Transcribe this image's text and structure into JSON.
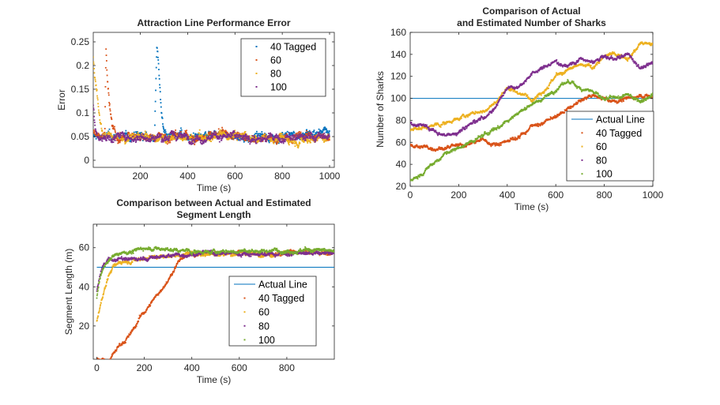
{
  "chart_data": [
    {
      "type": "scatter",
      "title": [
        "Attraction Line Performance Error"
      ],
      "xlabel": "Time (s)",
      "ylabel": "Error",
      "xlim": [
        1,
        1020
      ],
      "ylim": [
        -0.015,
        0.27
      ],
      "xticks": [
        200,
        400,
        600,
        800,
        1000
      ],
      "yticks": [
        0,
        0.05,
        0.1,
        0.15,
        0.2,
        0.25
      ],
      "grid": false,
      "legend_position": "top-right",
      "series": [
        {
          "name": "40 Tagged",
          "color": "#0072BD",
          "x": [
            1,
            200,
            260,
            270,
            275,
            280,
            285,
            290,
            300,
            400,
            600,
            800,
            1000
          ],
          "y": [
            0.05,
            0.05,
            0.05,
            0.25,
            0.22,
            0.17,
            0.13,
            0.09,
            0.06,
            0.05,
            0.05,
            0.05,
            0.06
          ]
        },
        {
          "name": "60",
          "color": "#D95319",
          "x": [
            1,
            30,
            50,
            55,
            60,
            70,
            80,
            100,
            200,
            400,
            600,
            800,
            1000
          ],
          "y": [
            0.06,
            0.05,
            0.06,
            0.23,
            0.18,
            0.12,
            0.08,
            0.05,
            0.05,
            0.05,
            0.05,
            0.05,
            0.05
          ]
        },
        {
          "name": "80",
          "color": "#EDB120",
          "x": [
            1,
            5,
            10,
            15,
            20,
            25,
            30,
            40,
            60,
            200,
            400,
            600,
            800,
            1000
          ],
          "y": [
            0.22,
            0.19,
            0.17,
            0.15,
            0.13,
            0.1,
            0.08,
            0.06,
            0.05,
            0.05,
            0.045,
            0.05,
            0.045,
            0.05
          ]
        },
        {
          "name": "100",
          "color": "#7E2F8E",
          "x": [
            1,
            10,
            20,
            40,
            200,
            400,
            600,
            800,
            1000
          ],
          "y": [
            0.12,
            0.07,
            0.05,
            0.05,
            0.05,
            0.05,
            0.05,
            0.045,
            0.05
          ]
        }
      ]
    },
    {
      "type": "scatter",
      "title": [
        "Comparison of Actual",
        "and Estimated Number of Sharks"
      ],
      "xlabel": "Time (s)",
      "ylabel": "Number of Sharks",
      "xlim": [
        0,
        1000
      ],
      "ylim": [
        20,
        160
      ],
      "xticks": [
        0,
        200,
        400,
        600,
        800,
        1000
      ],
      "yticks": [
        20,
        40,
        60,
        80,
        100,
        120,
        140,
        160
      ],
      "grid": false,
      "legend_position": "bottom-right",
      "series": [
        {
          "name": "Actual Line",
          "color": "#0072BD",
          "style": "line",
          "x": [
            0,
            1000
          ],
          "y": [
            100,
            100
          ]
        },
        {
          "name": "40 Tagged",
          "color": "#D95319",
          "x": [
            0,
            100,
            200,
            300,
            350,
            400,
            450,
            500,
            550,
            600,
            650,
            700,
            750,
            800,
            850,
            900,
            950,
            1000
          ],
          "y": [
            57,
            55,
            56,
            62,
            58,
            62,
            65,
            75,
            78,
            83,
            90,
            97,
            103,
            100,
            98,
            100,
            103,
            101
          ]
        },
        {
          "name": "60",
          "color": "#EDB120",
          "x": [
            0,
            50,
            100,
            150,
            200,
            250,
            300,
            350,
            400,
            450,
            500,
            550,
            600,
            650,
            700,
            750,
            800,
            850,
            900,
            950,
            1000
          ],
          "y": [
            72,
            73,
            75,
            78,
            82,
            86,
            88,
            95,
            110,
            105,
            100,
            108,
            120,
            125,
            130,
            128,
            138,
            140,
            138,
            150,
            148
          ]
        },
        {
          "name": "80",
          "color": "#7E2F8E",
          "x": [
            0,
            50,
            100,
            150,
            200,
            250,
            300,
            350,
            400,
            450,
            500,
            550,
            600,
            650,
            700,
            750,
            800,
            850,
            900,
            950,
            1000
          ],
          "y": [
            78,
            76,
            70,
            66,
            70,
            78,
            82,
            92,
            110,
            112,
            122,
            128,
            133,
            130,
            136,
            132,
            138,
            135,
            140,
            128,
            132
          ]
        },
        {
          "name": "100",
          "color": "#77AC30",
          "x": [
            0,
            50,
            100,
            150,
            200,
            250,
            300,
            350,
            400,
            450,
            500,
            550,
            600,
            650,
            700,
            750,
            800,
            850,
            900,
            950,
            1000
          ],
          "y": [
            25,
            32,
            42,
            50,
            55,
            60,
            66,
            72,
            80,
            88,
            95,
            100,
            108,
            115,
            110,
            107,
            98,
            100,
            103,
            98,
            104
          ]
        }
      ]
    },
    {
      "type": "scatter",
      "title": [
        "Comparison between Actual and Estimated",
        "Segment Length"
      ],
      "xlabel": "Time (s)",
      "ylabel": "Segment Length (m)",
      "xlim": [
        -15,
        1000
      ],
      "ylim": [
        3,
        72
      ],
      "xticks": [
        0,
        200,
        400,
        600,
        800
      ],
      "yticks": [
        20,
        40,
        60
      ],
      "grid": false,
      "legend_position": "bottom-right",
      "series": [
        {
          "name": "Actual Line",
          "color": "#0072BD",
          "style": "line",
          "x": [
            0,
            1000
          ],
          "y": [
            50,
            50
          ]
        },
        {
          "name": "40 Tagged",
          "color": "#D95319",
          "x": [
            0,
            40,
            60,
            80,
            100,
            120,
            150,
            180,
            200,
            230,
            260,
            300,
            330,
            360,
            400,
            500,
            600,
            700,
            800,
            900,
            1000
          ],
          "y": [
            3,
            3,
            4,
            8,
            11,
            13,
            17,
            24,
            27,
            32,
            37,
            43,
            50,
            55,
            57,
            57,
            58,
            56,
            57,
            58,
            57
          ]
        },
        {
          "name": "60",
          "color": "#EDB120",
          "x": [
            0,
            10,
            20,
            30,
            40,
            50,
            60,
            70,
            100,
            200,
            400,
            600,
            800,
            1000
          ],
          "y": [
            22,
            28,
            33,
            38,
            42,
            46,
            48,
            50,
            53,
            55,
            57,
            57,
            57,
            58
          ]
        },
        {
          "name": "80",
          "color": "#7E2F8E",
          "x": [
            0,
            10,
            20,
            30,
            50,
            100,
            200,
            300,
            400,
            600,
            800,
            1000
          ],
          "y": [
            38,
            44,
            48,
            51,
            54,
            54,
            54,
            56,
            57,
            57,
            57,
            57
          ]
        },
        {
          "name": "100",
          "color": "#77AC30",
          "x": [
            0,
            10,
            20,
            40,
            60,
            100,
            150,
            200,
            300,
            400,
            600,
            800,
            1000
          ],
          "y": [
            35,
            42,
            48,
            52,
            55,
            58,
            58,
            60,
            59,
            58,
            58,
            59,
            58
          ]
        }
      ]
    }
  ]
}
